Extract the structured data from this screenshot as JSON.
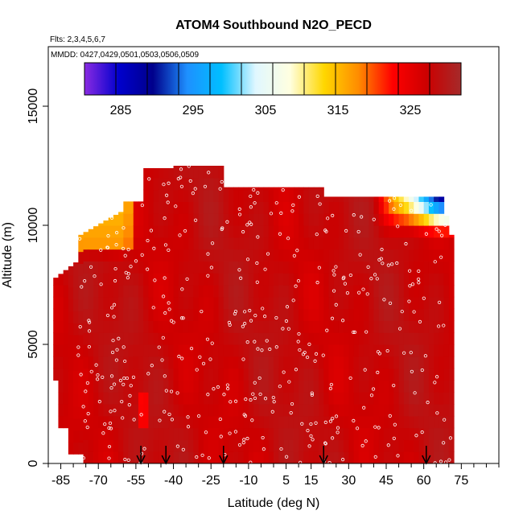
{
  "chart_data": {
    "type": "heatmap",
    "title": "ATOM4 Southbound N2O_PECD",
    "subtitle_flights": "Flts: 2,3,4,5,6,7",
    "subtitle_dates": "MMDD: 0427,0429,0501,0503,0506,0509",
    "xlabel": "Latitude (deg N)",
    "ylabel": "Altitude (m)",
    "xlim": [
      -90,
      90
    ],
    "ylim": [
      0,
      17500
    ],
    "x_ticks": [
      -85,
      -70,
      -55,
      -40,
      -25,
      -10,
      5,
      15,
      30,
      45,
      60,
      75
    ],
    "y_ticks": [
      0,
      5000,
      10000,
      15000
    ],
    "grid": false,
    "colorbar": {
      "range": [
        280,
        332
      ],
      "tick_values": [
        285,
        295,
        305,
        315,
        325
      ],
      "colors": [
        "#8a2be2",
        "#0000cd",
        "#00008b",
        "#1e90ff",
        "#00bfff",
        "#e0f7ff",
        "#ffffe0",
        "#ffd700",
        "#ff8c00",
        "#ff0000",
        "#cc0000",
        "#a52a2a"
      ]
    },
    "profile_latitudes": [
      -53,
      -43,
      -20,
      20,
      61
    ],
    "data_extent": {
      "lat_range": [
        -88,
        72
      ],
      "alt_range": [
        0,
        12500
      ]
    },
    "field_summary": {
      "background_value": 328,
      "high_lat_south_upper_min": 315,
      "high_lat_north_upper_min": 285
    }
  },
  "colors": {
    "background": "#ffffff",
    "field_main": "#c00000",
    "field_dark": "#a01010",
    "field_bright": "#ff2000",
    "marker": "#ffffff",
    "arrow": "#000000"
  }
}
